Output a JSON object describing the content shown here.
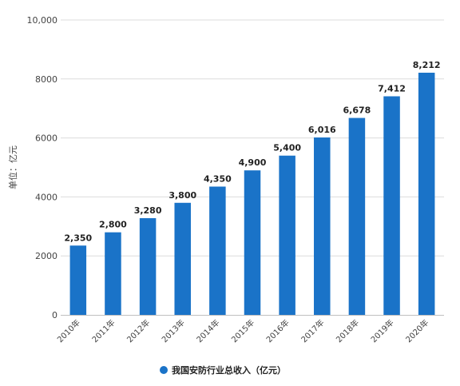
{
  "chart_data": {
    "type": "bar",
    "categories": [
      "2010年",
      "2011年",
      "2012年",
      "2013年",
      "2014年",
      "2015年",
      "2016年",
      "2017年",
      "2018年",
      "2019年",
      "2020年"
    ],
    "series": [
      {
        "name": "我国安防行业总收入（亿元）",
        "values": [
          2350,
          2800,
          3280,
          3800,
          4350,
          4900,
          5400,
          6016,
          6678,
          7412,
          8212
        ]
      }
    ],
    "data_labels": [
      "2,350",
      "2,800",
      "3,280",
      "3,800",
      "4,350",
      "4,900",
      "5,400",
      "6,016",
      "6,678",
      "7,412",
      "8,212"
    ],
    "ylabel": "单位：亿元",
    "ylim": [
      0,
      10000
    ],
    "yticks": [
      0,
      2000,
      4000,
      6000,
      8000,
      10000
    ],
    "ytick_labels": [
      "0",
      "2000",
      "4000",
      "6000",
      "8000",
      "10,000"
    ],
    "grid": true,
    "legend_position": "bottom-center",
    "bar_color": "#1a73c8"
  }
}
